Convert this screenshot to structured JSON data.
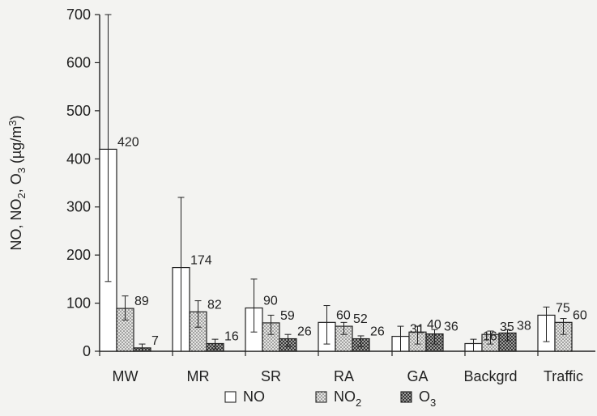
{
  "chart_data": {
    "type": "bar",
    "ylabel": "NO, NO2, O3 (µg/m3)",
    "ylim": [
      0,
      700
    ],
    "yticks": [
      0,
      100,
      200,
      300,
      400,
      500,
      600,
      700
    ],
    "categories": [
      "MW",
      "MR",
      "SR",
      "RA",
      "GA",
      "Backgrd",
      "Traffic"
    ],
    "series": [
      {
        "name": "NO",
        "values": [
          420,
          174,
          90,
          60,
          31,
          16,
          75
        ],
        "err_low": [
          145,
          0,
          40,
          15,
          0,
          0,
          20
        ],
        "err_high": [
          700,
          320,
          150,
          95,
          52,
          25,
          92
        ],
        "labels": [
          "420",
          "174",
          "90",
          "60",
          "31",
          "16",
          "75"
        ]
      },
      {
        "name": "NO2",
        "values": [
          89,
          82,
          59,
          52,
          40,
          35,
          60
        ],
        "err_low": [
          65,
          50,
          35,
          35,
          15,
          15,
          35
        ],
        "err_high": [
          115,
          105,
          75,
          60,
          52,
          42,
          68
        ],
        "labels": [
          "89",
          "82",
          "59",
          "52",
          "40",
          "35",
          "60"
        ]
      },
      {
        "name": "O3",
        "values": [
          7,
          16,
          26,
          26,
          36,
          38,
          null
        ],
        "err_low": [
          0,
          5,
          10,
          10,
          15,
          22,
          null
        ],
        "err_high": [
          15,
          25,
          35,
          32,
          45,
          45,
          null
        ],
        "labels": [
          "7",
          "16",
          "26",
          "26",
          "36",
          "38",
          ""
        ]
      }
    ],
    "legend": {
      "position": "bottom",
      "items": [
        {
          "text": "NO",
          "sub": ""
        },
        {
          "text": "NO",
          "sub": "2"
        },
        {
          "text": "O",
          "sub": "3"
        }
      ]
    },
    "ylabel_parts": [
      {
        "text": "NO, NO",
        "sub": ""
      },
      {
        "text": "",
        "sub": "2"
      },
      {
        "text": ", O",
        "sub": ""
      },
      {
        "text": "",
        "sub": "3"
      },
      {
        "text": " (µg/m",
        "sub": ""
      },
      {
        "text": "3",
        "sup": true
      },
      {
        "text": ")",
        "sub": ""
      }
    ]
  }
}
